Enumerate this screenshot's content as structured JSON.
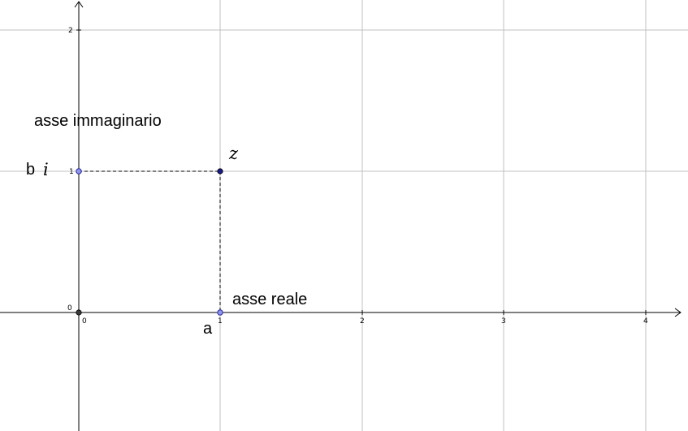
{
  "colors": {
    "point_free": "#1a1a8c",
    "point_fixed": "#8f95ef",
    "point_fixed_stroke": "#2a2a99",
    "point_origin": "#3a3a3a"
  },
  "axes": {
    "x_ticks": [
      "0",
      "1",
      "2",
      "3",
      "4"
    ],
    "y_ticks": [
      "0",
      "1",
      "2"
    ]
  },
  "labels": {
    "imag_axis": "asse immaginario",
    "real_axis": "asse reale",
    "z": "z",
    "a": "a",
    "b": "b",
    "i": "i"
  },
  "points": {
    "z": [
      1,
      1
    ],
    "a": [
      1,
      0
    ],
    "bi": [
      0,
      1
    ],
    "origin": [
      0,
      0
    ]
  }
}
